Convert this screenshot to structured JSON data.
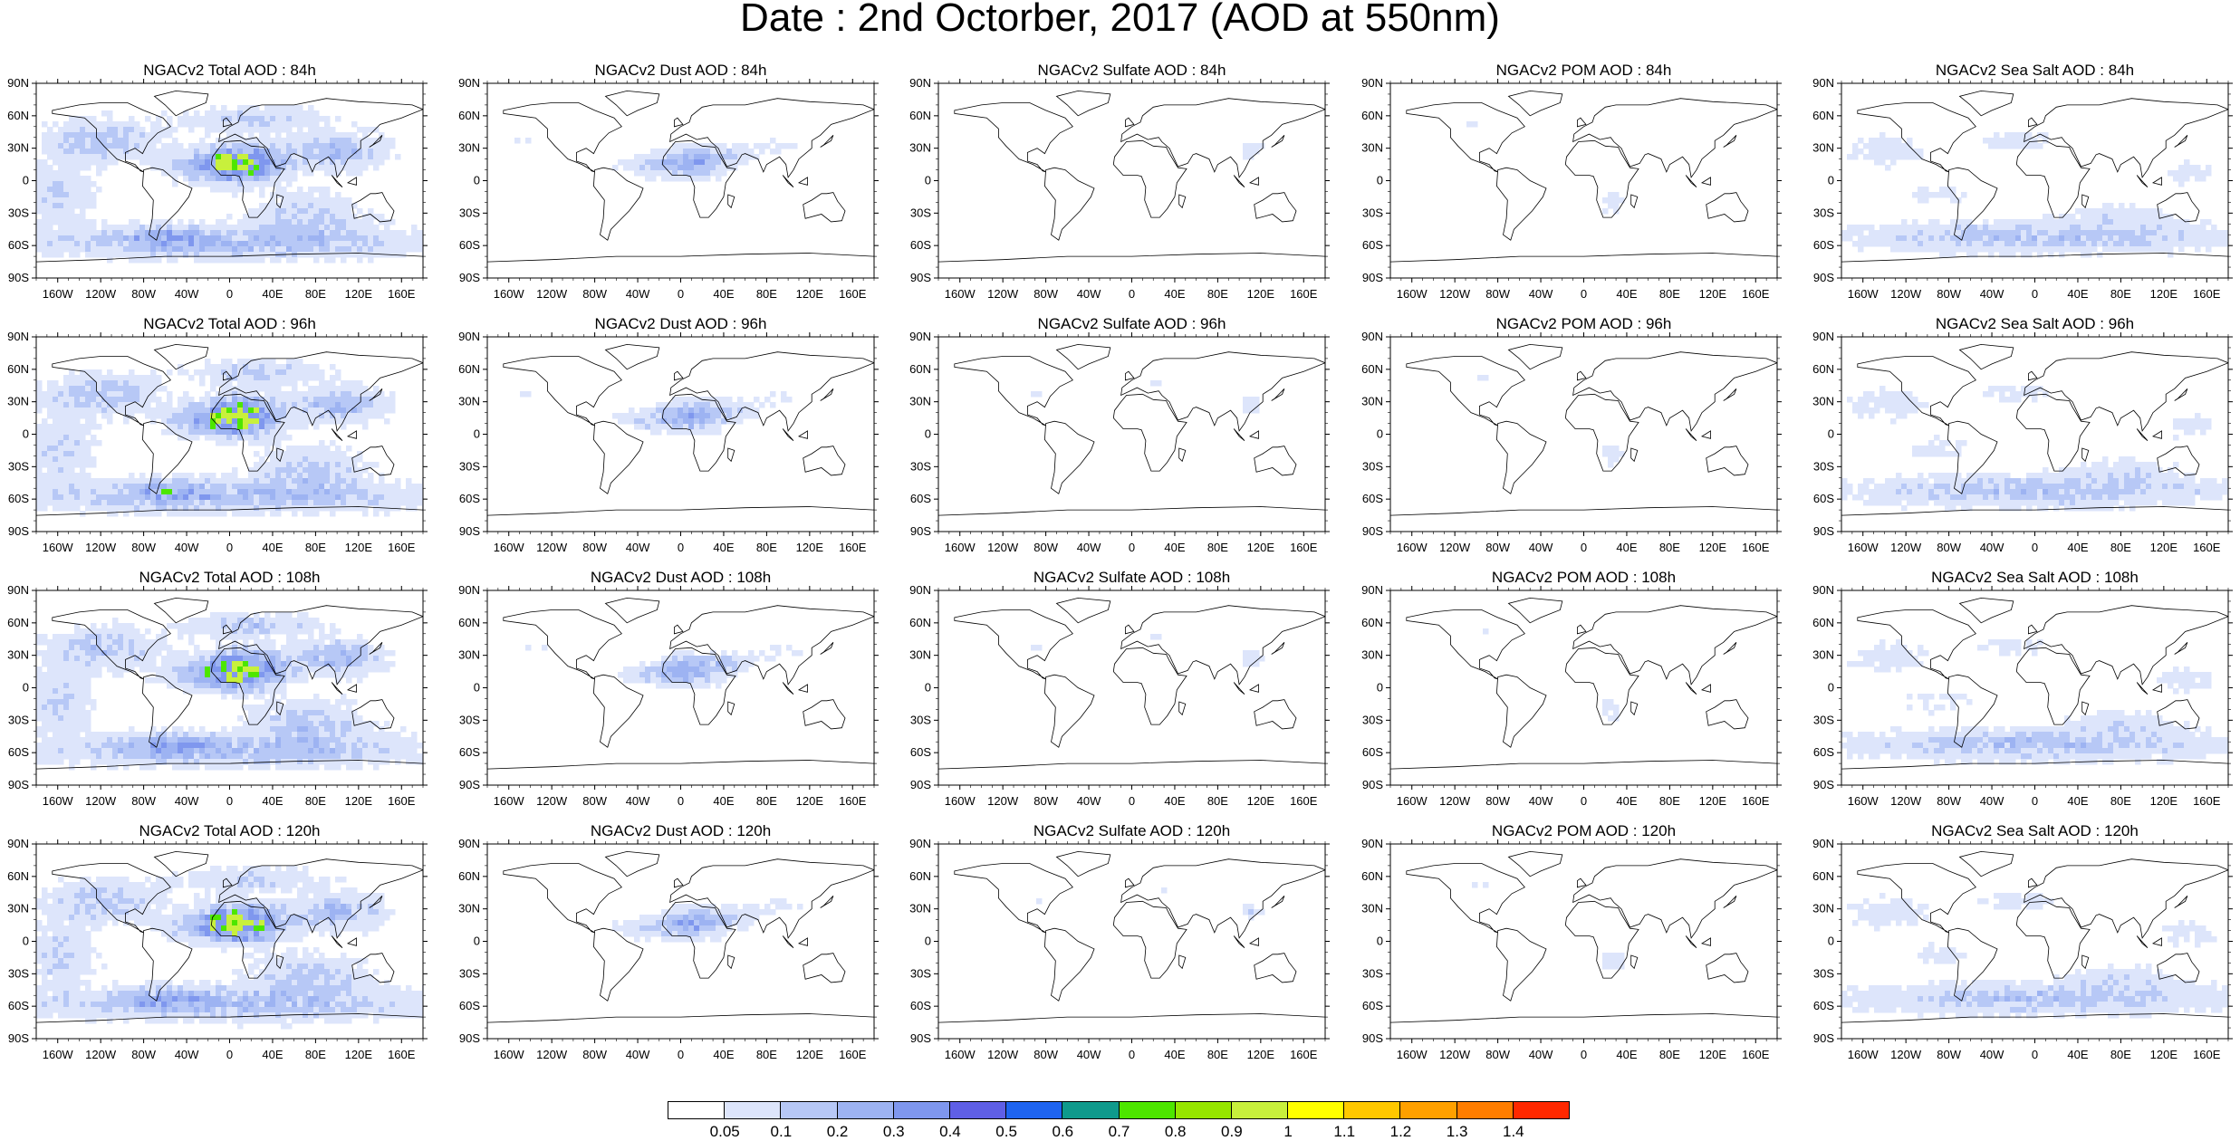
{
  "title": "Date : 2nd Octorber, 2017 (AOD at 550nm)",
  "panel_titles": [
    [
      "NGACv2 Total AOD : 84h",
      "NGACv2 Dust AOD : 84h",
      "NGACv2 Sulfate AOD : 84h",
      "NGACv2 POM AOD : 84h",
      "NGACv2 Sea Salt AOD : 84h"
    ],
    [
      "NGACv2 Total AOD : 96h",
      "NGACv2 Dust AOD : 96h",
      "NGACv2 Sulfate AOD : 96h",
      "NGACv2 POM AOD : 96h",
      "NGACv2 Sea Salt AOD : 96h"
    ],
    [
      "NGACv2 Total AOD : 108h",
      "NGACv2 Dust AOD : 108h",
      "NGACv2 Sulfate AOD : 108h",
      "NGACv2 POM AOD : 108h",
      "NGACv2 Sea Salt AOD : 108h"
    ],
    [
      "NGACv2 Total AOD : 120h",
      "NGACv2 Dust AOD : 120h",
      "NGACv2 Sulfate AOD : 120h",
      "NGACv2 POM AOD : 120h",
      "NGACv2 Sea Salt  AOD : 120h"
    ]
  ],
  "lat_labels": [
    "90N",
    "60N",
    "30N",
    "0",
    "30S",
    "60S",
    "90S"
  ],
  "lon_labels": [
    "160W",
    "120W",
    "80W",
    "40W",
    "0",
    "40E",
    "80E",
    "120E",
    "160E"
  ],
  "colorbar": {
    "labels": [
      "0.05",
      "0.1",
      "0.2",
      "0.3",
      "0.4",
      "0.5",
      "0.6",
      "0.7",
      "0.8",
      "0.9",
      "1",
      "1.1",
      "1.2",
      "1.3",
      "1.4"
    ],
    "colors": [
      "#ffffff",
      "#dde5fb",
      "#b7c8f6",
      "#9db3f2",
      "#7f97ee",
      "#5f5fe6",
      "#1e64f0",
      "#0f9a8c",
      "#4de600",
      "#96e600",
      "#c8f03c",
      "#ffff00",
      "#ffc800",
      "#ffa000",
      "#ff7d00",
      "#ff2800"
    ]
  },
  "species_intensity": {
    "Total": "high",
    "Dust": "medium",
    "Sulfate": "low",
    "POM": "low",
    "Sea Salt": "medium"
  }
}
